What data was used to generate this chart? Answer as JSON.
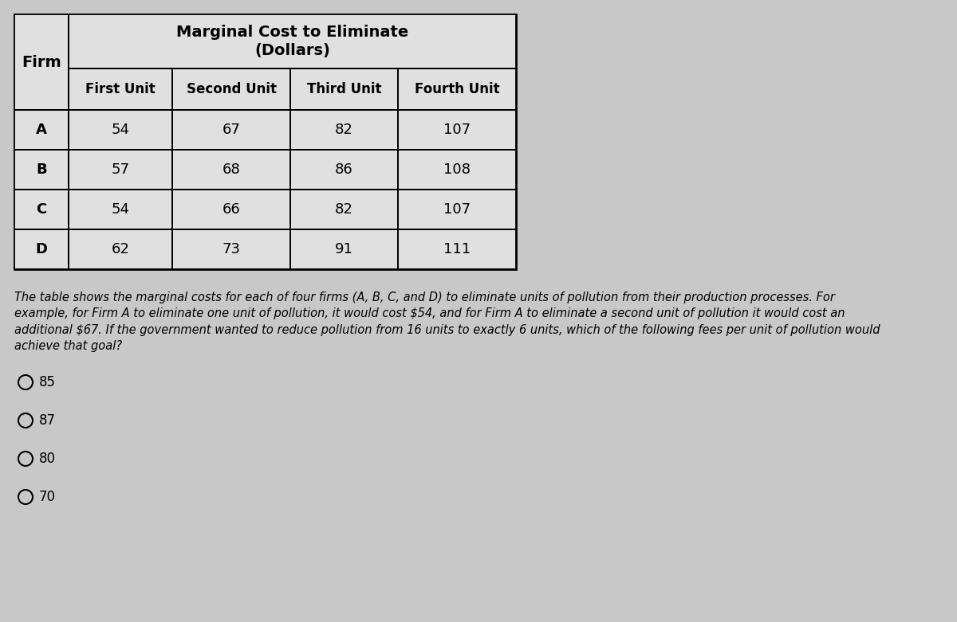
{
  "table_title_line1": "Marginal Cost to Eliminate",
  "table_title_line2": "(Dollars)",
  "col_header_0": "Firm",
  "col_headers": [
    "First Unit",
    "Second Unit",
    "Third Unit",
    "Fourth Unit"
  ],
  "rows": [
    [
      "A",
      "54",
      "67",
      "82",
      "107"
    ],
    [
      "B",
      "57",
      "68",
      "86",
      "108"
    ],
    [
      "C",
      "54",
      "66",
      "82",
      "107"
    ],
    [
      "D",
      "62",
      "73",
      "91",
      "111"
    ]
  ],
  "paragraph": "The table shows the marginal costs for each of four firms (A, B, C, and D) to eliminate units of pollution from their production processes. For\nexample, for Firm A to eliminate one unit of pollution, it would cost $54, and for Firm A to eliminate a second unit of pollution it would cost an\nadditional $67. If the government wanted to reduce pollution from 16 units to exactly 6 units, which of the following fees per unit of pollution would\nachieve that goal?",
  "options": [
    "85",
    "87",
    "80",
    "70"
  ],
  "bg_color": "#c8c8c8",
  "table_bg": "#e0e0e0",
  "font_size_title": 14,
  "font_size_header": 12,
  "font_size_data": 13,
  "font_size_paragraph": 10.5,
  "font_size_options": 12
}
